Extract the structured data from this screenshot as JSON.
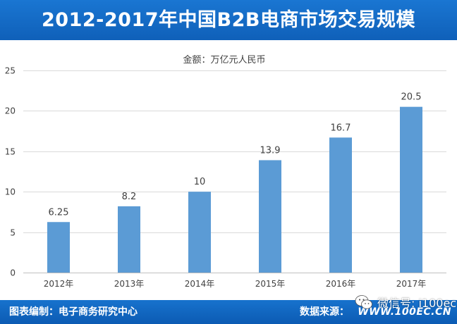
{
  "header": {
    "title": "2012-2017年中国B2B电商市场交易规模"
  },
  "footer": {
    "left_text": "图表编制：电子商务研究中心",
    "right_label": "数据来源：",
    "source": "WWW.100EC.CN"
  },
  "watermark": {
    "text": "微信号: i100ec",
    "icon": "wechat-icon"
  },
  "colors": {
    "header": "#1a76d2",
    "footer": "#0f60b9",
    "bar": "#5b9bd5",
    "grid": "#d9d9d9",
    "text": "#404040"
  },
  "chart_data": {
    "type": "bar",
    "unit_label": "金额：万亿元人民币",
    "categories": [
      "2012年",
      "2013年",
      "2014年",
      "2015年",
      "2016年",
      "2017年"
    ],
    "values": [
      6.25,
      8.2,
      10,
      13.9,
      16.7,
      20.5
    ],
    "value_labels": [
      "6.25",
      "8.2",
      "10",
      "13.9",
      "16.7",
      "20.5"
    ],
    "y_ticks": [
      "0",
      "5",
      "10",
      "15",
      "20",
      "25"
    ],
    "ylim": [
      0,
      25
    ],
    "grid": true,
    "legend": "none"
  }
}
